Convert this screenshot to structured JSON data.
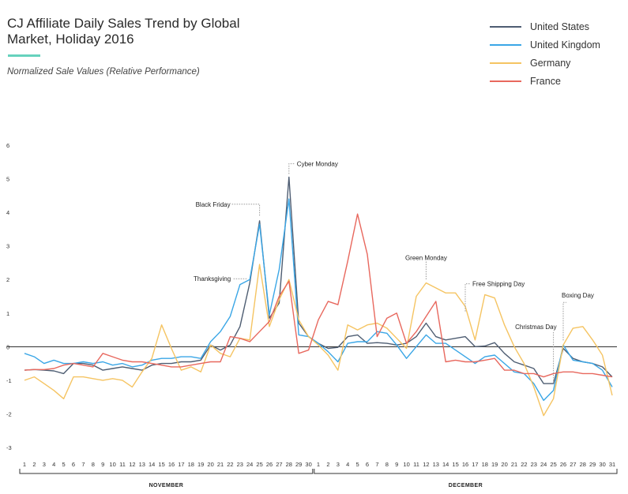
{
  "chart_data": {
    "type": "line",
    "title": "CJ Affiliate Daily Sales Trend by Global Market, Holiday 2016",
    "subtitle": "Normalized Sale Values (Relative Performance)",
    "xlabel": "",
    "ylabel": "",
    "ylim": [
      -3,
      6
    ],
    "yticks": [
      6,
      5,
      4,
      3,
      2,
      1,
      0,
      -1,
      -2,
      -3
    ],
    "grid": false,
    "legend_position": "top-right",
    "x": [
      "1",
      "2",
      "3",
      "4",
      "5",
      "6",
      "7",
      "8",
      "9",
      "10",
      "11",
      "12",
      "13",
      "14",
      "15",
      "16",
      "17",
      "18",
      "19",
      "20",
      "21",
      "22",
      "23",
      "24",
      "25",
      "26",
      "27",
      "28",
      "29",
      "30",
      "1",
      "2",
      "3",
      "4",
      "5",
      "6",
      "7",
      "8",
      "9",
      "10",
      "11",
      "12",
      "13",
      "14",
      "15",
      "16",
      "17",
      "18",
      "19",
      "20",
      "21",
      "22",
      "23",
      "24",
      "25",
      "26",
      "27",
      "28",
      "29",
      "30",
      "31"
    ],
    "month_groups": [
      {
        "label": "NOVEMBER",
        "start": 0,
        "end": 29
      },
      {
        "label": "DECEMBER",
        "start": 30,
        "end": 60
      }
    ],
    "series": [
      {
        "name": "United States",
        "color": "#4e5d72",
        "values": [
          -0.7,
          -0.68,
          -0.7,
          -0.72,
          -0.8,
          -0.5,
          -0.5,
          -0.55,
          -0.7,
          -0.65,
          -0.6,
          -0.65,
          -0.7,
          -0.55,
          -0.5,
          -0.5,
          -0.45,
          -0.45,
          -0.4,
          0.05,
          -0.1,
          0.05,
          0.6,
          1.9,
          3.75,
          0.85,
          1.3,
          5.05,
          0.7,
          0.3,
          0.1,
          -0.05,
          -0.02,
          0.3,
          0.35,
          0.1,
          0.12,
          0.1,
          0.05,
          0.1,
          0.3,
          0.7,
          0.3,
          0.2,
          0.25,
          0.3,
          0.0,
          0.02,
          0.12,
          -0.2,
          -0.45,
          -0.55,
          -0.65,
          -1.1,
          -1.1,
          -0.05,
          -0.35,
          -0.45,
          -0.5,
          -0.6,
          -0.9
        ]
      },
      {
        "name": "United Kingdom",
        "color": "#3aa6e6",
        "values": [
          -0.2,
          -0.3,
          -0.5,
          -0.4,
          -0.5,
          -0.5,
          -0.45,
          -0.5,
          -0.45,
          -0.55,
          -0.5,
          -0.6,
          -0.55,
          -0.4,
          -0.35,
          -0.35,
          -0.3,
          -0.3,
          -0.35,
          0.15,
          0.45,
          0.9,
          1.85,
          2.0,
          3.65,
          0.95,
          2.3,
          4.4,
          0.35,
          0.3,
          0.1,
          -0.15,
          -0.45,
          0.1,
          0.15,
          0.15,
          0.45,
          0.4,
          0.05,
          -0.35,
          0.0,
          0.35,
          0.1,
          0.1,
          -0.1,
          -0.3,
          -0.5,
          -0.3,
          -0.25,
          -0.5,
          -0.75,
          -0.8,
          -1.1,
          -1.6,
          -1.3,
          0.05,
          -0.4,
          -0.45,
          -0.5,
          -0.7,
          -1.2
        ]
      },
      {
        "name": "Germany",
        "color": "#f5c462",
        "values": [
          -1.0,
          -0.9,
          -1.1,
          -1.3,
          -1.55,
          -0.9,
          -0.9,
          -0.95,
          -1.0,
          -0.95,
          -1.0,
          -1.2,
          -0.75,
          -0.35,
          0.65,
          -0.05,
          -0.7,
          -0.6,
          -0.75,
          0.05,
          -0.2,
          -0.3,
          0.25,
          0.2,
          2.45,
          0.6,
          1.4,
          2.0,
          0.8,
          0.3,
          0.05,
          -0.25,
          -0.7,
          0.65,
          0.5,
          0.65,
          0.7,
          0.55,
          0.25,
          -0.05,
          1.5,
          1.9,
          1.75,
          1.6,
          1.6,
          1.2,
          0.2,
          1.55,
          1.45,
          0.65,
          0.0,
          -0.5,
          -1.2,
          -2.05,
          -1.55,
          0.05,
          0.55,
          0.6,
          0.2,
          -0.25,
          -1.45
        ]
      },
      {
        "name": "France",
        "color": "#e8685e",
        "values": [
          -0.7,
          -0.68,
          -0.68,
          -0.65,
          -0.55,
          -0.5,
          -0.55,
          -0.6,
          -0.2,
          -0.3,
          -0.4,
          -0.45,
          -0.45,
          -0.5,
          -0.55,
          -0.6,
          -0.6,
          -0.55,
          -0.5,
          -0.45,
          -0.45,
          0.3,
          0.25,
          0.15,
          0.45,
          0.75,
          1.5,
          1.95,
          -0.2,
          -0.1,
          0.8,
          1.35,
          1.25,
          2.55,
          3.95,
          2.75,
          0.3,
          0.85,
          1.0,
          0.1,
          0.45,
          0.9,
          1.35,
          -0.45,
          -0.4,
          -0.45,
          -0.45,
          -0.4,
          -0.35,
          -0.7,
          -0.7,
          -0.8,
          -0.8,
          -0.9,
          -0.8,
          -0.75,
          -0.75,
          -0.8,
          -0.8,
          -0.85,
          -0.9
        ]
      }
    ],
    "annotations": [
      {
        "text": "Thanksgiving",
        "index": 23,
        "value": 2.0
      },
      {
        "text": "Black Friday",
        "index": 24,
        "value": 3.75
      },
      {
        "text": "Cyber Monday",
        "index": 27,
        "value": 5.05
      },
      {
        "text": "Green Monday",
        "index": 41,
        "value": 1.9
      },
      {
        "text": "Free Shipping Day",
        "index": 45,
        "value": 1.05
      },
      {
        "text": "Christmas Day",
        "index": 54,
        "value": -0.6
      },
      {
        "text": "Boxing Day",
        "index": 55,
        "value": 0.05
      }
    ]
  }
}
